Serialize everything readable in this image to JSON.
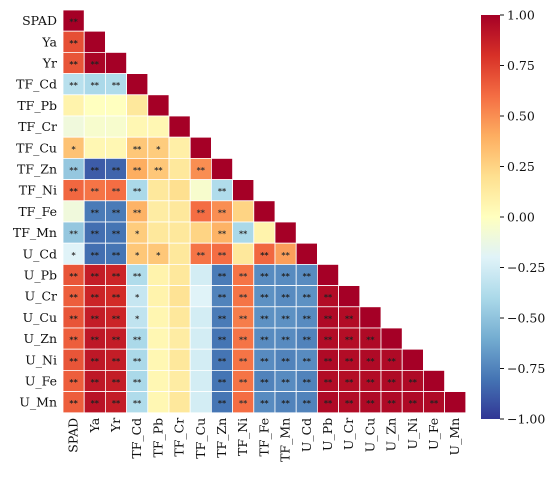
{
  "chart_data": {
    "type": "heatmap",
    "variables": [
      "SPAD",
      "Ya",
      "Yr",
      "TF_Cd",
      "TF_Pb",
      "TF_Cr",
      "TF_Cu",
      "TF_Zn",
      "TF_Ni",
      "TF_Fe",
      "TF_Mn",
      "U_Cd",
      "U_Pb",
      "U_Cr",
      "U_Cu",
      "U_Zn",
      "U_Ni",
      "U_Fe",
      "U_Mn"
    ],
    "lower_triangle": true,
    "values": [
      [
        1.0
      ],
      [
        0.7,
        1.0
      ],
      [
        0.68,
        0.98,
        1.0
      ],
      [
        -0.35,
        -0.4,
        -0.38,
        1.0
      ],
      [
        0.08,
        0.0,
        0.0,
        0.15,
        1.0
      ],
      [
        -0.1,
        -0.05,
        -0.05,
        0.05,
        0.05,
        1.0
      ],
      [
        0.32,
        0.05,
        0.05,
        0.3,
        0.28,
        0.1,
        1.0
      ],
      [
        -0.48,
        -0.88,
        -0.85,
        0.4,
        0.3,
        0.15,
        0.5,
        1.0
      ],
      [
        0.62,
        0.58,
        0.6,
        -0.4,
        0.15,
        0.2,
        -0.05,
        -0.38,
        1.0
      ],
      [
        -0.1,
        -0.78,
        -0.78,
        0.38,
        0.12,
        0.15,
        0.6,
        0.5,
        0.25,
        1.0
      ],
      [
        -0.48,
        -0.82,
        -0.8,
        0.28,
        0.15,
        0.15,
        0.25,
        0.38,
        -0.4,
        0.08,
        1.0
      ],
      [
        -0.2,
        -0.82,
        -0.8,
        0.3,
        0.3,
        0.15,
        0.58,
        0.6,
        0.15,
        0.62,
        0.45,
        1.0
      ],
      [
        0.68,
        0.88,
        0.85,
        -0.38,
        0.08,
        0.15,
        -0.25,
        -0.78,
        0.58,
        -0.72,
        -0.72,
        -0.72,
        1.0
      ],
      [
        0.65,
        0.85,
        0.82,
        -0.3,
        0.08,
        0.18,
        -0.2,
        -0.75,
        0.58,
        -0.7,
        -0.72,
        -0.7,
        0.95,
        1.0
      ],
      [
        0.68,
        0.88,
        0.85,
        -0.32,
        0.06,
        0.15,
        -0.25,
        -0.78,
        0.55,
        -0.7,
        -0.7,
        -0.72,
        0.96,
        0.95,
        1.0
      ],
      [
        0.65,
        0.9,
        0.88,
        -0.4,
        0.05,
        0.12,
        -0.25,
        -0.8,
        0.58,
        -0.72,
        -0.72,
        -0.75,
        0.95,
        0.94,
        0.96,
        1.0
      ],
      [
        0.68,
        0.9,
        0.88,
        -0.4,
        0.05,
        0.15,
        -0.25,
        -0.8,
        0.58,
        -0.72,
        -0.75,
        -0.72,
        0.96,
        0.95,
        0.96,
        0.96,
        1.0
      ],
      [
        0.65,
        0.9,
        0.88,
        -0.4,
        0.05,
        0.12,
        -0.25,
        -0.8,
        0.58,
        -0.75,
        -0.72,
        -0.75,
        0.95,
        0.94,
        0.95,
        0.96,
        0.96,
        1.0
      ],
      [
        0.65,
        0.92,
        0.88,
        -0.38,
        0.05,
        0.15,
        -0.25,
        -0.8,
        0.6,
        -0.72,
        -0.75,
        -0.75,
        0.96,
        0.95,
        0.96,
        0.96,
        0.96,
        0.96,
        1.0
      ]
    ],
    "significance": [
      [
        "**"
      ],
      [
        "**",
        ""
      ],
      [
        "**",
        "**",
        ""
      ],
      [
        "**",
        "**",
        "**",
        ""
      ],
      [
        "",
        "",
        "",
        "",
        ""
      ],
      [
        "",
        "",
        "",
        "",
        "",
        ""
      ],
      [
        "*",
        "",
        "",
        "**",
        "*",
        "",
        ""
      ],
      [
        "**",
        "**",
        "**",
        "**",
        "**",
        "",
        "**",
        ""
      ],
      [
        "**",
        "**",
        "**",
        "**",
        "",
        "",
        "",
        "**",
        ""
      ],
      [
        "",
        "**",
        "**",
        "**",
        "",
        "",
        "**",
        "**",
        "",
        ""
      ],
      [
        "**",
        "**",
        "**",
        "*",
        "",
        "",
        "",
        "**",
        "**",
        "",
        ""
      ],
      [
        "*",
        "**",
        "**",
        "*",
        "*",
        "",
        "**",
        "**",
        "",
        "**",
        "**",
        ""
      ],
      [
        "**",
        "**",
        "**",
        "**",
        "",
        "",
        "",
        "**",
        "**",
        "**",
        "**",
        "**",
        ""
      ],
      [
        "**",
        "**",
        "**",
        "*",
        "",
        "",
        "",
        "**",
        "**",
        "**",
        "**",
        "**",
        "**",
        ""
      ],
      [
        "**",
        "**",
        "**",
        "*",
        "",
        "",
        "",
        "**",
        "**",
        "**",
        "**",
        "**",
        "**",
        "**",
        ""
      ],
      [
        "**",
        "**",
        "**",
        "**",
        "",
        "",
        "",
        "**",
        "**",
        "**",
        "**",
        "**",
        "**",
        "**",
        "**",
        ""
      ],
      [
        "**",
        "**",
        "**",
        "**",
        "",
        "",
        "",
        "**",
        "**",
        "**",
        "**",
        "**",
        "**",
        "**",
        "**",
        "**",
        ""
      ],
      [
        "**",
        "**",
        "**",
        "**",
        "",
        "",
        "",
        "**",
        "**",
        "**",
        "**",
        "**",
        "**",
        "**",
        "**",
        "**",
        "**",
        ""
      ],
      [
        "**",
        "**",
        "**",
        "**",
        "",
        "",
        "",
        "**",
        "**",
        "**",
        "**",
        "**",
        "**",
        "**",
        "**",
        "**",
        "**",
        "**",
        ""
      ]
    ],
    "colorbar": {
      "range": [
        -1.0,
        1.0
      ],
      "ticks": [
        "1.00",
        "0.75",
        "0.50",
        "0.25",
        "0.00",
        "−0.25",
        "−0.50",
        "−0.75",
        "−1.00"
      ],
      "tick_values": [
        1.0,
        0.75,
        0.5,
        0.25,
        0.0,
        -0.25,
        -0.5,
        -0.75,
        -1.0
      ],
      "colormap": "RdYlBu_r",
      "low_color": "#313695",
      "mid_color": "#ffffbf",
      "high_color": "#a50026"
    },
    "grid": true,
    "title": "",
    "xlabel": "",
    "ylabel": ""
  }
}
